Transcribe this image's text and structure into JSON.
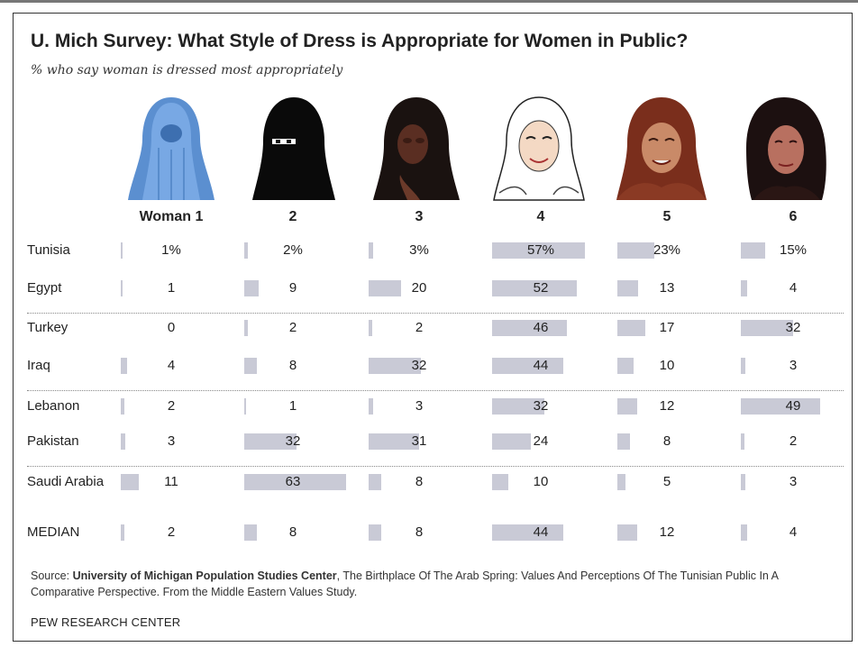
{
  "title": "U. Mich Survey: What Style of Dress is Appropriate for Women in Public?",
  "subtitle": "% who say woman is dressed most appropriately",
  "chart_data": {
    "type": "table",
    "columns": [
      "Woman 1",
      "2",
      "3",
      "4",
      "5",
      "6"
    ],
    "rows": [
      {
        "label": "Tunisia",
        "values": [
          1,
          2,
          3,
          57,
          23,
          15
        ],
        "display": [
          "1%",
          "2%",
          "3%",
          "57%",
          "23%",
          "15%"
        ]
      },
      {
        "label": "Egypt",
        "values": [
          1,
          9,
          20,
          52,
          13,
          4
        ],
        "display": [
          "1",
          "9",
          "20",
          "52",
          "13",
          "4"
        ]
      },
      {
        "label": "Turkey",
        "values": [
          0,
          2,
          2,
          46,
          17,
          32
        ],
        "display": [
          "0",
          "2",
          "2",
          "46",
          "17",
          "32"
        ]
      },
      {
        "label": "Iraq",
        "values": [
          4,
          8,
          32,
          44,
          10,
          3
        ],
        "display": [
          "4",
          "8",
          "32",
          "44",
          "10",
          "3"
        ]
      },
      {
        "label": "Lebanon",
        "values": [
          2,
          1,
          3,
          32,
          12,
          49
        ],
        "display": [
          "2",
          "1",
          "3",
          "32",
          "12",
          "49"
        ]
      },
      {
        "label": "Pakistan",
        "values": [
          3,
          32,
          31,
          24,
          8,
          2
        ],
        "display": [
          "3",
          "32",
          "31",
          "24",
          "8",
          "2"
        ]
      },
      {
        "label": "Saudi Arabia",
        "values": [
          11,
          63,
          8,
          10,
          5,
          3
        ],
        "display": [
          "11",
          "63",
          "8",
          "10",
          "5",
          "3"
        ]
      },
      {
        "label": "MEDIAN",
        "values": [
          2,
          8,
          8,
          44,
          12,
          4
        ],
        "display": [
          "2",
          "8",
          "8",
          "44",
          "12",
          "4"
        ]
      }
    ],
    "bar_color": "#c9cad6",
    "figure_icons": [
      "burqa-figure-icon",
      "niqab-figure-icon",
      "chador-figure-icon",
      "hijab-white-figure-icon",
      "hijab-brown-figure-icon",
      "uncovered-figure-icon"
    ]
  },
  "source": {
    "prefix": "Source: ",
    "org": "University of Michigan Population Studies Center",
    "rest": ", The Birthplace Of The Arab Spring: Values And Perceptions Of The Tunisian Public In A Comparative Perspective. From the Middle Eastern Values Study."
  },
  "footer": "PEW RESEARCH CENTER"
}
